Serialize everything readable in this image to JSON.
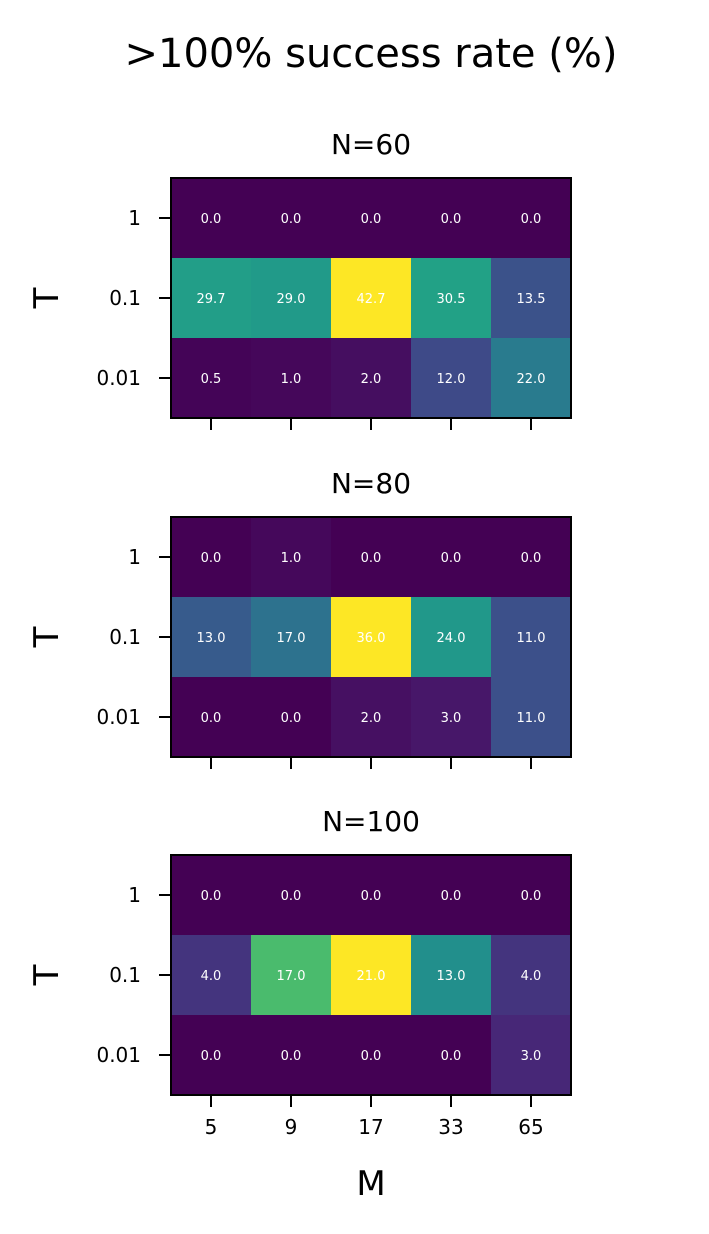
{
  "chart_data": {
    "type": "heatmap",
    "title": ">100% success rate (%)",
    "xlabel": "M",
    "ylabel": "T",
    "x_categories": [
      "5",
      "9",
      "17",
      "33",
      "65"
    ],
    "y_categories": [
      "1",
      "0.1",
      "0.01"
    ],
    "colormap": "viridis",
    "annotation_color": "#ffffff",
    "panels": [
      {
        "title": "N=60",
        "values": [
          [
            0.0,
            0.0,
            0.0,
            0.0,
            0.0
          ],
          [
            29.7,
            29.0,
            42.7,
            30.5,
            13.5
          ],
          [
            0.5,
            1.0,
            2.0,
            12.0,
            22.0
          ]
        ]
      },
      {
        "title": "N=80",
        "values": [
          [
            0.0,
            1.0,
            0.0,
            0.0,
            0.0
          ],
          [
            13.0,
            17.0,
            36.0,
            24.0,
            11.0
          ],
          [
            0.0,
            0.0,
            2.0,
            3.0,
            11.0
          ]
        ]
      },
      {
        "title": "N=100",
        "values": [
          [
            0.0,
            0.0,
            0.0,
            0.0,
            0.0
          ],
          [
            4.0,
            17.0,
            21.0,
            13.0,
            4.0
          ],
          [
            0.0,
            0.0,
            0.0,
            0.0,
            3.0
          ]
        ]
      }
    ]
  }
}
